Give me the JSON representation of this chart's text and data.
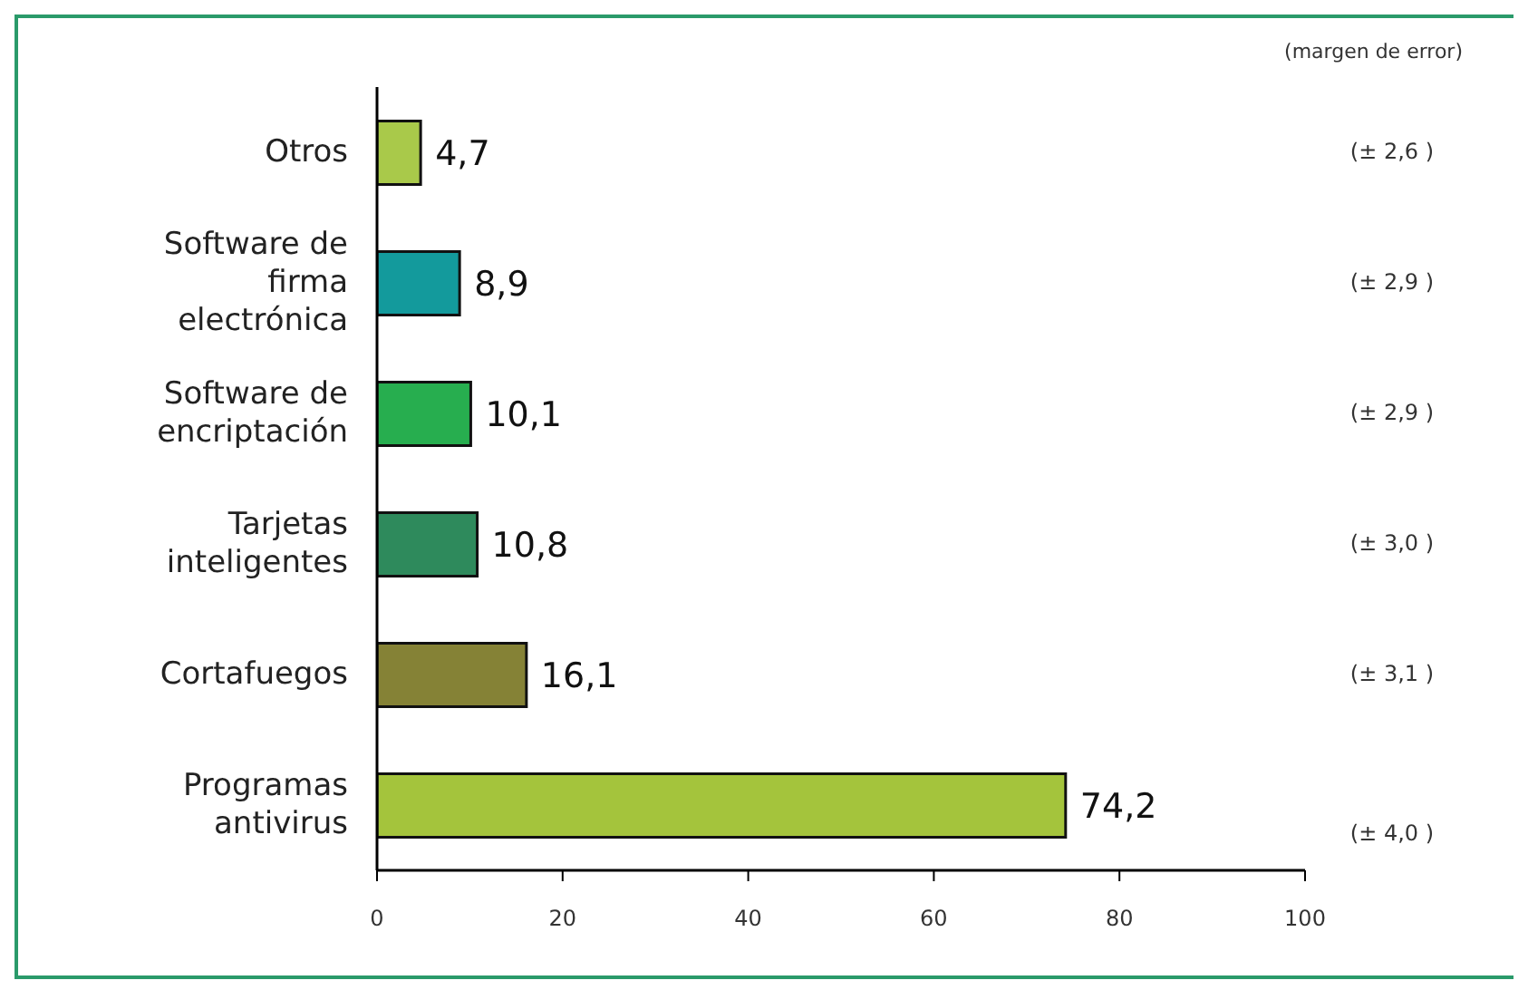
{
  "chart_data": {
    "type": "bar",
    "orientation": "horizontal",
    "categories": [
      "Otros",
      "Software de firma electrónica",
      "Software de encriptación",
      "Tarjetas inteligentes",
      "Cortafuegos",
      "Programas antivirus"
    ],
    "values": [
      4.7,
      8.9,
      10.1,
      10.8,
      16.1,
      74.2
    ],
    "colors": [
      "#a9c94a",
      "#139a9c",
      "#27ae4f",
      "#2e8a5c",
      "#858236",
      "#a4c43c"
    ],
    "xlim": [
      0,
      100
    ],
    "xticks": [
      0,
      20,
      40,
      60,
      80,
      100
    ],
    "value_labels": [
      "4,7",
      "8,9",
      "10,1",
      "10,8",
      "16,1",
      "74,2"
    ],
    "grid": false,
    "legend": false,
    "annotations": [
      "(margen de error)",
      "(± 2,6 )",
      "(± 2,9 )",
      "(± 2,9 )",
      "(± 3,0 )",
      "(± 3,1 )",
      "(± 4,0 )"
    ]
  }
}
